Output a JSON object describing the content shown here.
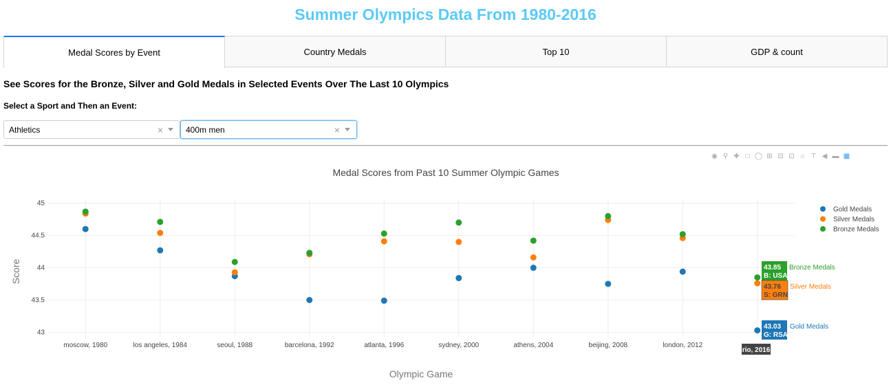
{
  "app_title": "Summer Olympics Data From 1980-2016",
  "tabs": [
    {
      "label": "Medal Scores by Event",
      "active": true
    },
    {
      "label": "Country Medals",
      "active": false
    },
    {
      "label": "Top 10",
      "active": false
    },
    {
      "label": "GDP & count",
      "active": false
    }
  ],
  "section_heading": "See Scores for the Bronze, Silver and Gold Medals in Selected Events Over The Last 10 Olympics",
  "select_label": "Select a Sport and Then an Event:",
  "sport_dropdown": {
    "value": "Athletics",
    "clear": "×"
  },
  "event_dropdown": {
    "value": "400m men",
    "clear": "×"
  },
  "modebar_icons": [
    "camera-icon",
    "zoom-icon",
    "pan-icon",
    "box-select-icon",
    "lasso-icon",
    "zoom-in-icon",
    "zoom-out-icon",
    "autoscale-icon",
    "reset-axes-icon",
    "spike-lines-icon",
    "hover-closest-icon",
    "hover-compare-icon",
    "plotly-logo-icon"
  ],
  "hover": {
    "x_label": "rio, 2016",
    "bronze": {
      "value": "43.85",
      "label": "B: USA",
      "name": "Bronze Medals"
    },
    "silver": {
      "value": "43.76",
      "label": "S: GRN",
      "name": "Silver Medals"
    },
    "gold": {
      "value": "43.03",
      "label": "G: RSA",
      "name": "Gold Medals"
    }
  },
  "chart_data": {
    "type": "scatter",
    "title": "Medal Scores from Past 10 Summer Olympic Games",
    "xlabel": "Olympic Game",
    "ylabel": "Score",
    "ylim": [
      42.93,
      45.06
    ],
    "yticks": [
      43,
      43.5,
      44,
      44.5,
      45
    ],
    "ytick_labels": [
      "43",
      "43.5",
      "44",
      "44.5",
      "45"
    ],
    "grid": true,
    "legend_position": "top-right",
    "categories": [
      "moscow, 1980",
      "los angeles, 1984",
      "seoul, 1988",
      "barcelona, 1992",
      "atlanta, 1996",
      "sydney, 2000",
      "athens, 2004",
      "beijing, 2008",
      "london, 2012",
      "rio, 2016"
    ],
    "series": [
      {
        "name": "Gold Medals",
        "color": "#1f77b4",
        "values": [
          44.6,
          44.27,
          43.87,
          43.5,
          43.49,
          43.84,
          44.0,
          43.75,
          43.94,
          43.03
        ]
      },
      {
        "name": "Silver Medals",
        "color": "#ff7f0e",
        "values": [
          44.84,
          44.54,
          43.93,
          44.21,
          44.41,
          44.4,
          44.16,
          44.74,
          44.46,
          43.76
        ]
      },
      {
        "name": "Bronze Medals",
        "color": "#2ca02c",
        "values": [
          44.87,
          44.71,
          44.09,
          44.23,
          44.53,
          44.7,
          44.42,
          44.8,
          44.52,
          43.85
        ]
      }
    ]
  }
}
